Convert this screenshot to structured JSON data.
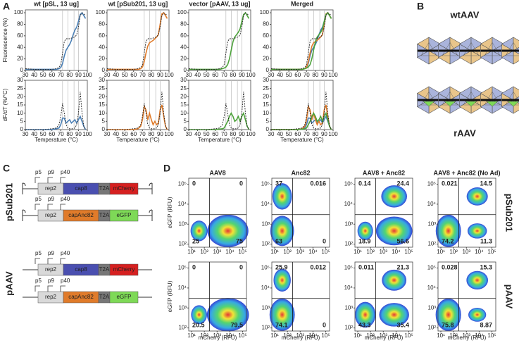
{
  "panel_labels": [
    "A",
    "B",
    "C",
    "D"
  ],
  "melt": {
    "titles": [
      "wt [pSL, 13 ug]",
      "wt [pSub201, 13 ug]",
      "vector [pAAV, 13 ug]",
      "Merged"
    ],
    "xlabel": "Temperature (°C)",
    "xlim": [
      30,
      100
    ],
    "xticks": [
      30,
      40,
      50,
      60,
      70,
      80,
      90,
      100
    ],
    "markers": [
      72,
      78,
      85,
      90
    ],
    "top": {
      "ylabel": "Fluorescence (%)",
      "ylim": [
        0,
        105
      ],
      "yticks": [
        0,
        20,
        40,
        60,
        80,
        100
      ]
    },
    "bottom": {
      "ylabel": "dF/dT (%/°C)",
      "ylim": [
        0,
        30
      ],
      "yticks": [
        0,
        5,
        10,
        15,
        20,
        25,
        30
      ]
    },
    "x": [
      30,
      40,
      50,
      60,
      65,
      68,
      70,
      72,
      74,
      76,
      78,
      80,
      82,
      84,
      86,
      88,
      90,
      92,
      94,
      96,
      98
    ],
    "reference": {
      "color": "#222222",
      "fluorescence": [
        3,
        2,
        2,
        2,
        3,
        5,
        10,
        30,
        50,
        55,
        55,
        55,
        56,
        57,
        58,
        62,
        75,
        95,
        100,
        98,
        95
      ],
      "derivative": [
        0,
        0,
        0,
        0.5,
        1,
        3,
        8,
        16,
        10,
        3,
        1,
        0.5,
        0.5,
        0.5,
        1,
        3,
        10,
        23,
        10,
        2,
        0
      ]
    },
    "series": [
      {
        "color": "#4a7fb5",
        "fluorescence": [
          2,
          2,
          2,
          2,
          2,
          3,
          5,
          12,
          25,
          35,
          40,
          45,
          52,
          62,
          70,
          75,
          85,
          97,
          100,
          95,
          90
        ],
        "derivative": [
          0,
          0,
          0,
          0,
          0.5,
          1,
          3,
          7,
          7,
          4,
          5,
          6,
          4,
          5,
          6,
          4,
          6,
          8,
          5,
          2,
          0
        ]
      },
      {
        "color": "#e07b2a",
        "fluorescence": [
          2,
          2,
          2,
          2,
          2,
          3,
          6,
          15,
          30,
          42,
          48,
          50,
          52,
          55,
          58,
          62,
          80,
          98,
          100,
          95,
          90
        ],
        "derivative": [
          0,
          0,
          0,
          0,
          0.5,
          2,
          6,
          14,
          12,
          6,
          10,
          6,
          3,
          5,
          3,
          4,
          12,
          15,
          8,
          2,
          0
        ]
      },
      {
        "color": "#4ca23a",
        "fluorescence": [
          2,
          2,
          2,
          2,
          2,
          3,
          4,
          6,
          10,
          20,
          35,
          50,
          58,
          62,
          66,
          72,
          85,
          97,
          100,
          95,
          90
        ],
        "derivative": [
          0,
          0,
          0,
          0,
          0.3,
          0.5,
          1,
          3,
          5,
          8,
          10,
          8,
          5,
          6,
          8,
          5,
          8,
          10,
          6,
          2,
          0
        ]
      }
    ]
  },
  "capsids": {
    "top_label": "wtAAV",
    "bottom_label": "rAAV"
  },
  "constructs": [
    {
      "label": "pSub201",
      "items": [
        {
          "promoters": [
            "p5",
            "p9",
            "p40"
          ],
          "blocks": [
            {
              "text": "rep2",
              "color": "#d9d9d9"
            },
            {
              "text": "cap8",
              "color": "#4a4fb0"
            },
            {
              "text": "T2A",
              "color": "#777777"
            },
            {
              "text": "mCherry",
              "color": "#d62020"
            }
          ]
        },
        {
          "promoters": [
            "p5",
            "p9",
            "p40"
          ],
          "blocks": [
            {
              "text": "rep2",
              "color": "#d9d9d9"
            },
            {
              "text": "capAnc82",
              "color": "#e07b2a"
            },
            {
              "text": "T2A",
              "color": "#777777"
            },
            {
              "text": "eGFP",
              "color": "#7ed957"
            }
          ]
        }
      ]
    },
    {
      "label": "pAAV",
      "items": [
        {
          "promoters": [
            "p5",
            "p9",
            "p40"
          ],
          "blocks": [
            {
              "text": "rep2",
              "color": "#d9d9d9"
            },
            {
              "text": "cap8",
              "color": "#4a4fb0"
            },
            {
              "text": "T2A",
              "color": "#777777"
            },
            {
              "text": "mCherry",
              "color": "#d62020"
            }
          ]
        },
        {
          "promoters": [
            "p5",
            "p9",
            "p40"
          ],
          "blocks": [
            {
              "text": "rep2",
              "color": "#d9d9d9"
            },
            {
              "text": "capAnc82",
              "color": "#e07b2a"
            },
            {
              "text": "T2A",
              "color": "#777777"
            },
            {
              "text": "eGFP",
              "color": "#7ed957"
            }
          ]
        }
      ]
    }
  ],
  "flow": {
    "columns": [
      "AAV8",
      "Anc82",
      "AAV8 + Anc82",
      "AAV8 + Anc82 (No Ad)"
    ],
    "xlabel": "mCherry (RFU)",
    "ylabel": "eGFP (RFU)",
    "log_scale": true,
    "xlim": [
      6,
      200000
    ],
    "ylim": [
      70,
      200000
    ],
    "gate": [
      250,
      3000
    ],
    "xticks": [
      {
        "value": 10,
        "label": "10¹"
      },
      {
        "value": 100,
        "label": "10²"
      },
      {
        "value": 1000,
        "label": "10³"
      },
      {
        "value": 10000,
        "label": "10⁴"
      },
      {
        "value": 100000,
        "label": "10⁵"
      }
    ],
    "yticks": [
      {
        "value": 100,
        "label": "10²"
      },
      {
        "value": 1000,
        "label": "10³"
      },
      {
        "value": 10000,
        "label": "10⁴"
      },
      {
        "value": 100000,
        "label": "10⁵"
      }
    ],
    "rows": [
      {
        "label": "pSub201",
        "quadrants": [
          [
            0,
            0,
            25,
            75
          ],
          [
            37,
            0.016,
            63,
            0
          ],
          [
            0.14,
            24.4,
            18.9,
            56.6
          ],
          [
            0.021,
            14.5,
            74.2,
            11.3
          ]
        ]
      },
      {
        "label": "pAAV",
        "quadrants": [
          [
            0,
            0,
            20.5,
            79.5
          ],
          [
            25.9,
            0.012,
            74.1,
            0
          ],
          [
            0.011,
            21.3,
            43.3,
            35.4
          ],
          [
            0.028,
            15.3,
            75.8,
            8.87
          ]
        ]
      }
    ]
  }
}
